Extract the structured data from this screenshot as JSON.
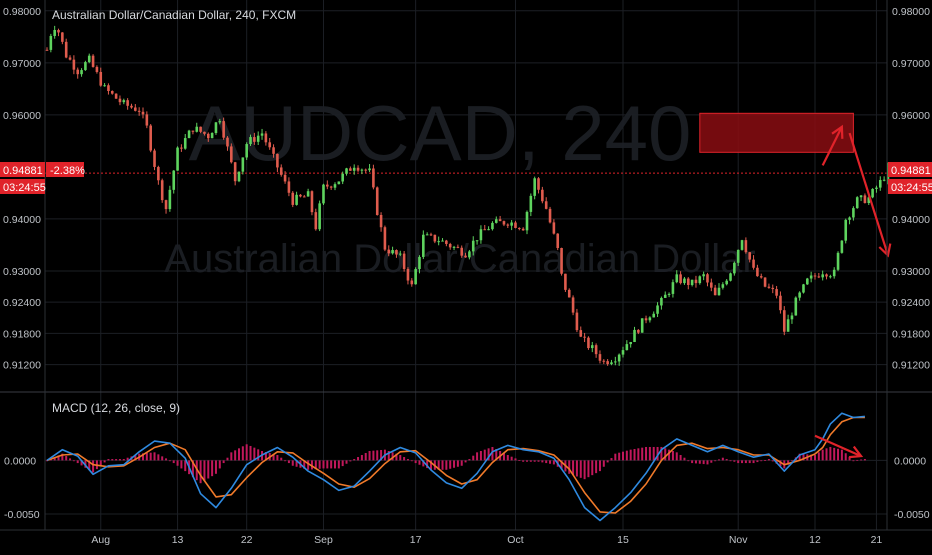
{
  "header": {
    "title": "Australian Dollar/Canadian Dollar, 240, FXCM",
    "watermark_symbol": "AUDCAD, 240",
    "watermark_name": "Australian Dollar/Canadian Dollar"
  },
  "price_badge": {
    "price": "0.94881",
    "change": "-2.38%",
    "countdown": "03:24:55"
  },
  "macd_label": "MACD (12, 26, close, 9)",
  "colors": {
    "background": "#000000",
    "grid": "#1c1f25",
    "up": "#5ed35e",
    "down": "#e05c4e",
    "accent": "#e0232a",
    "macd_line": "#2f8ae0",
    "signal_line": "#f07a2a",
    "histogram": "#c2185b",
    "axis_text": "#bfc3c8"
  },
  "chart_data": [
    {
      "type": "candlestick",
      "title": "Australian Dollar/Canadian Dollar, 240, FXCM",
      "x_ticks": [
        "Aug",
        "13",
        "22",
        "Sep",
        "17",
        "Oct",
        "15",
        "Nov",
        "12",
        "21"
      ],
      "y_ticks": [
        "0.98000",
        "0.97000",
        "0.96000",
        "0.94000",
        "0.93000",
        "0.92400",
        "0.91800",
        "0.91200"
      ],
      "ylim": [
        0.9075,
        0.9815
      ],
      "last_price": 0.94881,
      "grid": true,
      "path": [
        [
          0,
          0.9725
        ],
        [
          0.8,
          0.9775
        ],
        [
          1.5,
          0.976
        ],
        [
          2.5,
          0.9715
        ],
        [
          4,
          0.9685
        ],
        [
          5.5,
          0.9705
        ],
        [
          7.5,
          0.965
        ],
        [
          10,
          0.962
        ],
        [
          12,
          0.961
        ],
        [
          13,
          0.9575
        ],
        [
          14.5,
          0.947
        ],
        [
          15.5,
          0.942
        ],
        [
          17,
          0.953
        ],
        [
          19,
          0.9575
        ],
        [
          21,
          0.956
        ],
        [
          22.5,
          0.9595
        ],
        [
          24.5,
          0.9475
        ],
        [
          26,
          0.9545
        ],
        [
          28,
          0.9565
        ],
        [
          30,
          0.95
        ],
        [
          32,
          0.9435
        ],
        [
          34,
          0.9445
        ],
        [
          35,
          0.9385
        ],
        [
          36,
          0.946
        ],
        [
          38,
          0.9475
        ],
        [
          40,
          0.9505
        ],
        [
          42,
          0.949
        ],
        [
          43,
          0.9415
        ],
        [
          44,
          0.9345
        ],
        [
          46,
          0.9325
        ],
        [
          47.5,
          0.927
        ],
        [
          49,
          0.9365
        ],
        [
          51,
          0.936
        ],
        [
          53,
          0.9345
        ],
        [
          54.5,
          0.9335
        ],
        [
          56,
          0.9365
        ],
        [
          58,
          0.939
        ],
        [
          60,
          0.9395
        ],
        [
          62,
          0.9385
        ],
        [
          63.5,
          0.9475
        ],
        [
          65,
          0.942
        ],
        [
          66.5,
          0.934
        ],
        [
          67,
          0.929
        ],
        [
          68,
          0.9245
        ],
        [
          69.5,
          0.917
        ],
        [
          71,
          0.915
        ],
        [
          72.5,
          0.9125
        ],
        [
          74,
          0.9135
        ],
        [
          76,
          0.917
        ],
        [
          78,
          0.921
        ],
        [
          80,
          0.924
        ],
        [
          82,
          0.9285
        ],
        [
          84,
          0.9275
        ],
        [
          85.5,
          0.929
        ],
        [
          87,
          0.925
        ],
        [
          89,
          0.93
        ],
        [
          90.5,
          0.9365
        ],
        [
          92,
          0.93
        ],
        [
          93.5,
          0.927
        ],
        [
          95,
          0.9255
        ],
        [
          96,
          0.9185
        ],
        [
          97.5,
          0.924
        ],
        [
          99,
          0.928
        ],
        [
          101,
          0.93
        ],
        [
          102.5,
          0.9295
        ],
        [
          104,
          0.94
        ],
        [
          105.5,
          0.9435
        ],
        [
          107,
          0.944
        ],
        [
          108.5,
          0.947
        ],
        [
          109.5,
          0.9495
        ]
      ],
      "annotations": {
        "zone_low": 0.9528,
        "zone_high": 0.9603,
        "zone_x": [
          85,
          105
        ],
        "arrow_up": [
          [
            101,
            0.9503
          ],
          [
            103.5,
            0.9577
          ]
        ],
        "arrow_down": [
          [
            104.5,
            0.9565
          ],
          [
            109.5,
            0.933
          ]
        ]
      }
    },
    {
      "type": "macd",
      "title": "MACD (12, 26, close, 9)",
      "y_ticks": [
        "0.0000",
        "-0.0050"
      ],
      "ylim": [
        -0.0063,
        0.006
      ],
      "macd": [
        [
          0,
          0.0
        ],
        [
          2,
          0.001
        ],
        [
          4,
          0.0004
        ],
        [
          6,
          -0.0013
        ],
        [
          8,
          -0.0005
        ],
        [
          10,
          -0.0004
        ],
        [
          12,
          0.0008
        ],
        [
          14,
          0.0018
        ],
        [
          16,
          0.0016
        ],
        [
          18,
          0.0002
        ],
        [
          20,
          -0.0031
        ],
        [
          22,
          -0.0044
        ],
        [
          24,
          -0.0026
        ],
        [
          26,
          -0.0004
        ],
        [
          28,
          0.0005
        ],
        [
          30,
          0.0012
        ],
        [
          32,
          0.0003
        ],
        [
          34,
          -0.001
        ],
        [
          36,
          -0.0018
        ],
        [
          38,
          -0.0028
        ],
        [
          40,
          -0.0024
        ],
        [
          42,
          -0.001
        ],
        [
          44,
          0.0005
        ],
        [
          46,
          0.0012
        ],
        [
          48,
          0.0007
        ],
        [
          50,
          -0.0009
        ],
        [
          52,
          -0.0021
        ],
        [
          54,
          -0.0026
        ],
        [
          56,
          -0.0012
        ],
        [
          58,
          0.0008
        ],
        [
          60,
          0.0014
        ],
        [
          62,
          0.001
        ],
        [
          64,
          0.0008
        ],
        [
          66,
          0.0002
        ],
        [
          68,
          -0.0018
        ],
        [
          70,
          -0.0044
        ],
        [
          72,
          -0.0056
        ],
        [
          74,
          -0.0044
        ],
        [
          76,
          -0.003
        ],
        [
          78,
          -0.0012
        ],
        [
          80,
          0.001
        ],
        [
          82,
          0.002
        ],
        [
          84,
          0.0014
        ],
        [
          86,
          0.0008
        ],
        [
          88,
          0.0014
        ],
        [
          90,
          0.0008
        ],
        [
          92,
          0.0003
        ],
        [
          94,
          0.0006
        ],
        [
          96,
          -0.001
        ],
        [
          98,
          0.0005
        ],
        [
          100,
          0.001
        ],
        [
          101,
          0.002
        ],
        [
          102,
          0.0034
        ],
        [
          103.5,
          0.0044
        ],
        [
          105,
          0.004
        ],
        [
          106.5,
          0.0041
        ]
      ],
      "signal": [
        [
          0,
          0.0
        ],
        [
          2,
          0.0005
        ],
        [
          4,
          0.0006
        ],
        [
          6,
          -0.0004
        ],
        [
          8,
          -0.0006
        ],
        [
          10,
          -0.0005
        ],
        [
          12,
          0.0003
        ],
        [
          14,
          0.0012
        ],
        [
          16,
          0.0016
        ],
        [
          18,
          0.001
        ],
        [
          20,
          -0.0014
        ],
        [
          22,
          -0.0034
        ],
        [
          24,
          -0.0032
        ],
        [
          26,
          -0.0016
        ],
        [
          28,
          -0.0002
        ],
        [
          30,
          0.0008
        ],
        [
          32,
          0.0007
        ],
        [
          34,
          -0.0003
        ],
        [
          36,
          -0.0012
        ],
        [
          38,
          -0.0022
        ],
        [
          40,
          -0.0025
        ],
        [
          42,
          -0.0017
        ],
        [
          44,
          -0.0003
        ],
        [
          46,
          0.0008
        ],
        [
          48,
          0.0009
        ],
        [
          50,
          -0.0002
        ],
        [
          52,
          -0.0014
        ],
        [
          54,
          -0.0022
        ],
        [
          56,
          -0.0018
        ],
        [
          58,
          -0.0002
        ],
        [
          60,
          0.001
        ],
        [
          62,
          0.0011
        ],
        [
          64,
          0.0009
        ],
        [
          66,
          0.0005
        ],
        [
          68,
          -0.0008
        ],
        [
          70,
          -0.003
        ],
        [
          72,
          -0.0048
        ],
        [
          74,
          -0.0049
        ],
        [
          76,
          -0.0038
        ],
        [
          78,
          -0.0022
        ],
        [
          80,
          0.0
        ],
        [
          82,
          0.0014
        ],
        [
          84,
          0.0016
        ],
        [
          86,
          0.0011
        ],
        [
          88,
          0.0012
        ],
        [
          90,
          0.001
        ],
        [
          92,
          0.0005
        ],
        [
          94,
          0.0005
        ],
        [
          96,
          -0.0004
        ],
        [
          98,
          0.0
        ],
        [
          100,
          0.0006
        ],
        [
          101,
          0.0012
        ],
        [
          102,
          0.0024
        ],
        [
          103.5,
          0.0036
        ],
        [
          105,
          0.004
        ],
        [
          106.5,
          0.004
        ]
      ],
      "annotations": {
        "arrow": [
          [
            100,
            0.0023
          ],
          [
            106,
            0.0004
          ]
        ]
      }
    }
  ]
}
